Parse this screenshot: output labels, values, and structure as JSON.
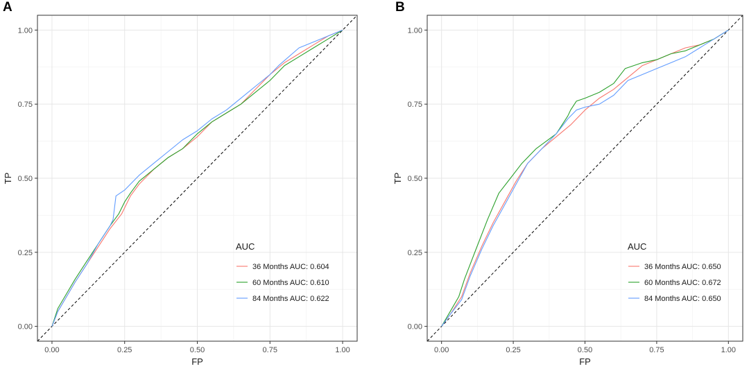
{
  "chart_data": [
    {
      "type": "line",
      "panel_label": "A",
      "xlabel": "FP",
      "ylabel": "TP",
      "xlim": [
        0,
        1
      ],
      "ylim": [
        0,
        1
      ],
      "xticks": [
        "0.00",
        "0.25",
        "0.50",
        "0.75",
        "1.00"
      ],
      "yticks": [
        "0.00",
        "0.25",
        "0.50",
        "0.75",
        "1.00"
      ],
      "grid": true,
      "legend_title": "AUC",
      "legend_position": "bottom-right",
      "reference_line": "diagonal-dashed",
      "series": [
        {
          "name": "36 Months AUC: 0.604",
          "color": "#f8766d",
          "x": [
            0,
            0.02,
            0.05,
            0.08,
            0.12,
            0.16,
            0.2,
            0.24,
            0.27,
            0.3,
            0.35,
            0.4,
            0.45,
            0.5,
            0.55,
            0.6,
            0.65,
            0.7,
            0.75,
            0.8,
            0.85,
            0.9,
            0.95,
            1.0
          ],
          "y": [
            0,
            0.05,
            0.1,
            0.15,
            0.21,
            0.27,
            0.33,
            0.38,
            0.44,
            0.48,
            0.53,
            0.57,
            0.6,
            0.64,
            0.69,
            0.72,
            0.75,
            0.8,
            0.85,
            0.89,
            0.92,
            0.95,
            0.98,
            1.0
          ]
        },
        {
          "name": "60 Months AUC: 0.610",
          "color": "#2ba02b",
          "x": [
            0,
            0.02,
            0.05,
            0.08,
            0.12,
            0.16,
            0.2,
            0.23,
            0.25,
            0.27,
            0.3,
            0.35,
            0.4,
            0.45,
            0.5,
            0.55,
            0.6,
            0.65,
            0.7,
            0.75,
            0.8,
            0.85,
            0.9,
            0.95,
            1.0
          ],
          "y": [
            0,
            0.06,
            0.11,
            0.16,
            0.22,
            0.28,
            0.34,
            0.38,
            0.42,
            0.45,
            0.49,
            0.53,
            0.57,
            0.6,
            0.65,
            0.69,
            0.72,
            0.75,
            0.79,
            0.83,
            0.88,
            0.91,
            0.94,
            0.97,
            1.0
          ]
        },
        {
          "name": "84 Months AUC: 0.622",
          "color": "#619cff",
          "x": [
            0,
            0.02,
            0.05,
            0.08,
            0.12,
            0.16,
            0.2,
            0.21,
            0.22,
            0.25,
            0.3,
            0.35,
            0.4,
            0.45,
            0.5,
            0.55,
            0.6,
            0.65,
            0.7,
            0.75,
            0.78,
            0.85,
            0.9,
            0.95,
            1.0
          ],
          "y": [
            0,
            0.05,
            0.1,
            0.15,
            0.21,
            0.28,
            0.34,
            0.36,
            0.44,
            0.46,
            0.51,
            0.55,
            0.59,
            0.63,
            0.66,
            0.7,
            0.73,
            0.77,
            0.81,
            0.85,
            0.88,
            0.94,
            0.96,
            0.98,
            1.0
          ]
        }
      ]
    },
    {
      "type": "line",
      "panel_label": "B",
      "xlabel": "FP",
      "ylabel": "TP",
      "xlim": [
        0,
        1
      ],
      "ylim": [
        0,
        1
      ],
      "xticks": [
        "0.00",
        "0.25",
        "0.50",
        "0.75",
        "1.00"
      ],
      "yticks": [
        "0.00",
        "0.25",
        "0.50",
        "0.75",
        "1.00"
      ],
      "grid": true,
      "legend_title": "AUC",
      "legend_position": "bottom-right",
      "reference_line": "diagonal-dashed",
      "series": [
        {
          "name": "36 Months AUC: 0.650",
          "color": "#f8766d",
          "x": [
            0,
            0.03,
            0.07,
            0.1,
            0.14,
            0.18,
            0.22,
            0.26,
            0.3,
            0.35,
            0.4,
            0.45,
            0.5,
            0.55,
            0.6,
            0.65,
            0.7,
            0.75,
            0.8,
            0.85,
            0.9,
            0.95,
            1.0
          ],
          "y": [
            0,
            0.04,
            0.1,
            0.18,
            0.27,
            0.35,
            0.42,
            0.49,
            0.55,
            0.6,
            0.64,
            0.68,
            0.73,
            0.77,
            0.8,
            0.84,
            0.88,
            0.9,
            0.92,
            0.94,
            0.95,
            0.97,
            1.0
          ]
        },
        {
          "name": "60 Months AUC: 0.672",
          "color": "#2ba02b",
          "x": [
            0,
            0.03,
            0.06,
            0.08,
            0.12,
            0.16,
            0.2,
            0.24,
            0.28,
            0.33,
            0.4,
            0.44,
            0.45,
            0.47,
            0.5,
            0.55,
            0.6,
            0.64,
            0.7,
            0.75,
            0.8,
            0.85,
            0.9,
            0.95,
            1.0
          ],
          "y": [
            0,
            0.05,
            0.1,
            0.16,
            0.26,
            0.36,
            0.45,
            0.5,
            0.55,
            0.6,
            0.65,
            0.71,
            0.73,
            0.76,
            0.77,
            0.79,
            0.82,
            0.87,
            0.89,
            0.9,
            0.92,
            0.93,
            0.95,
            0.97,
            1.0
          ]
        },
        {
          "name": "84 Months AUC: 0.650",
          "color": "#619cff",
          "x": [
            0,
            0.03,
            0.07,
            0.1,
            0.14,
            0.18,
            0.22,
            0.26,
            0.3,
            0.35,
            0.4,
            0.44,
            0.47,
            0.5,
            0.55,
            0.6,
            0.65,
            0.7,
            0.75,
            0.8,
            0.85,
            0.9,
            0.95,
            1.0
          ],
          "y": [
            0,
            0.04,
            0.09,
            0.17,
            0.26,
            0.34,
            0.41,
            0.48,
            0.55,
            0.6,
            0.65,
            0.7,
            0.73,
            0.74,
            0.75,
            0.78,
            0.83,
            0.85,
            0.87,
            0.89,
            0.91,
            0.94,
            0.97,
            1.0
          ]
        }
      ]
    }
  ]
}
